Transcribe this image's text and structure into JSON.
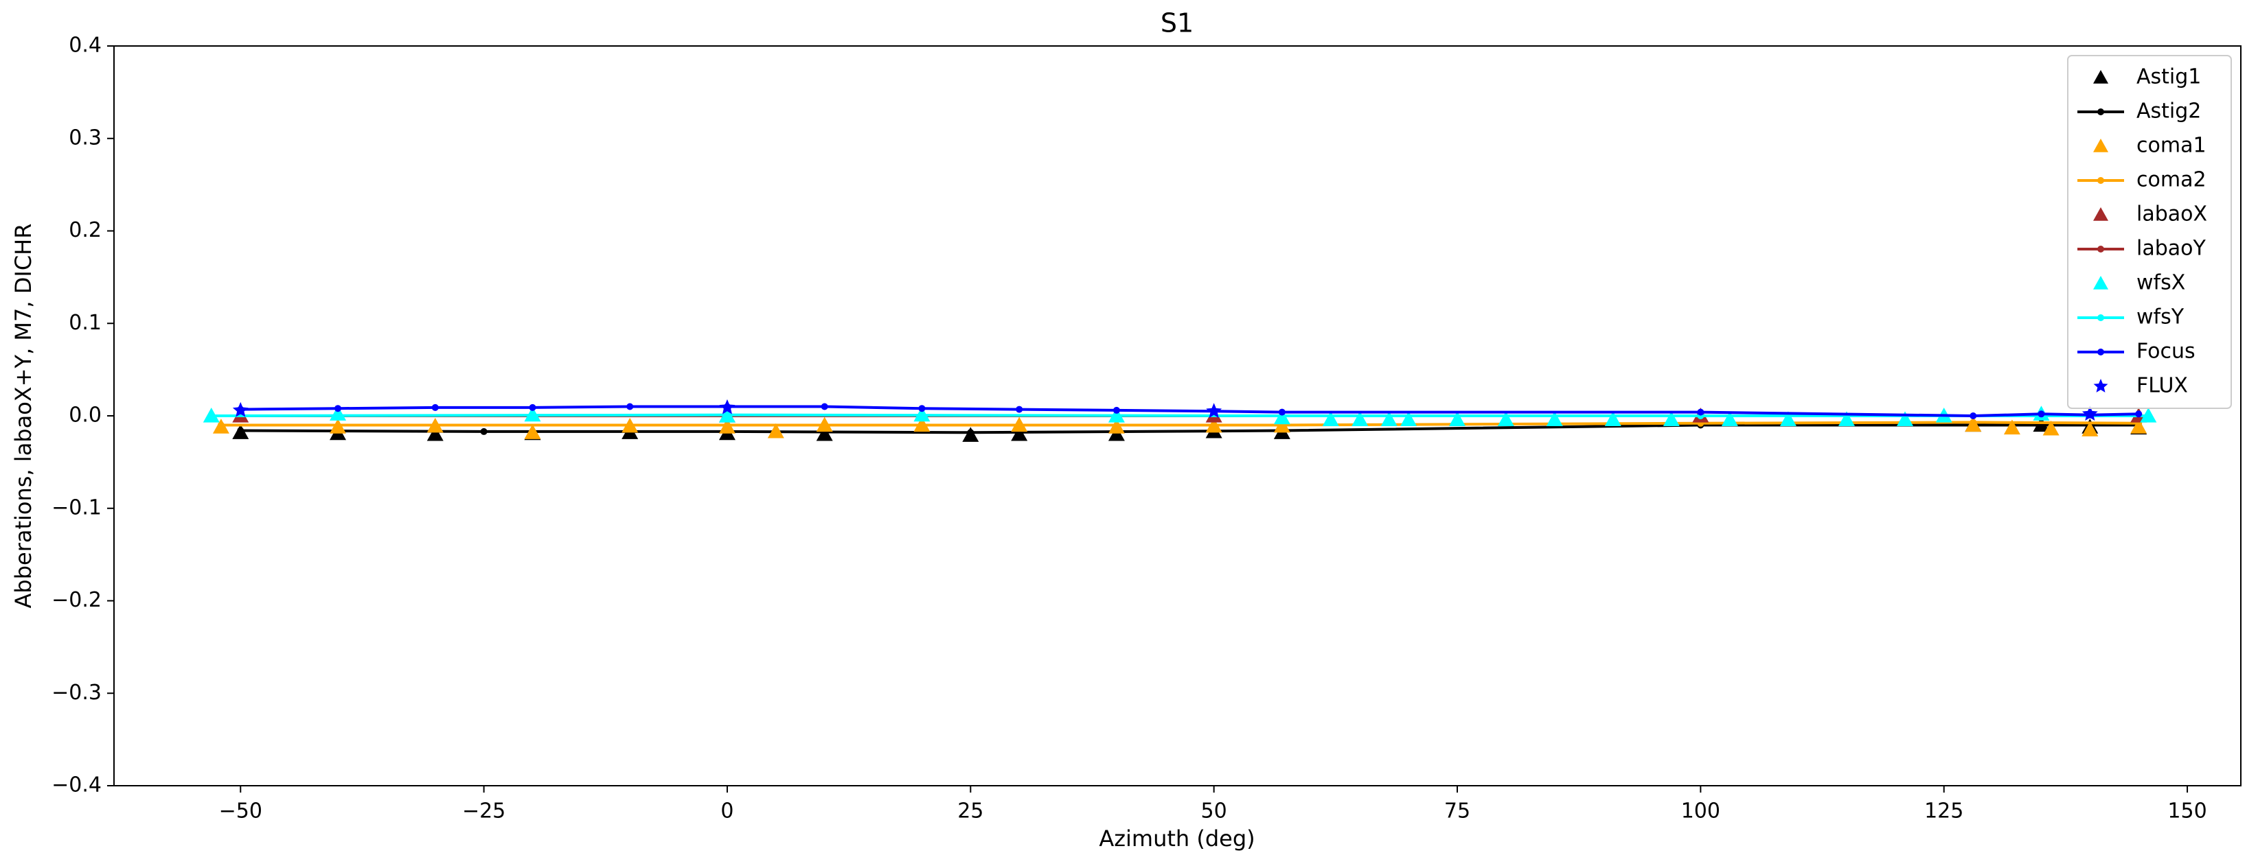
{
  "chart_data": {
    "type": "line",
    "title": "S1",
    "x_label": "Azimuth (deg)",
    "y_label": "Abberations, labaoX+Y, M7, DICHR",
    "xlim": [
      -63,
      155.5
    ],
    "ylim": [
      -0.4,
      0.4
    ],
    "xticks": [
      {
        "value": -50,
        "label": "−50"
      },
      {
        "value": -25,
        "label": "−25"
      },
      0,
      25,
      50,
      75,
      100,
      125,
      150
    ],
    "yticks": [
      {
        "value": -0.4,
        "label": "−0.4"
      },
      {
        "value": -0.3,
        "label": "−0.3"
      },
      {
        "value": -0.2,
        "label": "−0.2"
      },
      {
        "value": -0.1,
        "label": "−0.1"
      },
      {
        "value": 0,
        "label": "0.0"
      },
      0.1,
      0.2,
      0.3,
      0.4
    ],
    "legend": "upper right",
    "series": [
      {
        "name": "Astig1",
        "color": "#000000",
        "mode": "markers",
        "marker": "triangle",
        "x": [
          -50,
          -40,
          -30,
          -20,
          -10,
          0,
          10,
          20,
          25,
          30,
          40,
          50,
          57,
          128,
          135,
          140,
          145
        ],
        "values": [
          -0.018,
          -0.019,
          -0.02,
          -0.019,
          -0.018,
          -0.019,
          -0.02,
          -0.012,
          -0.021,
          -0.02,
          -0.02,
          -0.017,
          -0.018,
          -0.01,
          -0.01,
          -0.012,
          -0.013
        ]
      },
      {
        "name": "Astig2",
        "color": "#000000",
        "mode": "lines",
        "marker": "circle",
        "x": [
          -50,
          -25,
          0,
          25,
          57,
          100,
          128,
          145
        ],
        "values": [
          -0.016,
          -0.017,
          -0.017,
          -0.018,
          -0.016,
          -0.01,
          -0.01,
          -0.01
        ]
      },
      {
        "name": "coma1",
        "color": "#ffa500",
        "mode": "markers",
        "marker": "triangle",
        "x": [
          -52,
          -40,
          -30,
          -20,
          -10,
          0,
          5,
          10,
          20,
          30,
          40,
          50,
          57,
          128,
          132,
          136,
          140,
          145
        ],
        "values": [
          -0.012,
          -0.012,
          -0.011,
          -0.018,
          -0.011,
          -0.012,
          -0.017,
          -0.01,
          -0.01,
          -0.01,
          -0.012,
          -0.011,
          -0.011,
          -0.01,
          -0.013,
          -0.014,
          -0.015,
          -0.012
        ]
      },
      {
        "name": "coma2",
        "color": "#ffa500",
        "mode": "lines",
        "marker": "circle",
        "x": [
          -52,
          0,
          57,
          100,
          128,
          145
        ],
        "values": [
          -0.01,
          -0.01,
          -0.01,
          -0.008,
          -0.007,
          -0.008
        ]
      },
      {
        "name": "labaoX",
        "color": "#a52a2a",
        "mode": "markers",
        "marker": "triangle",
        "x": [
          -50,
          0,
          50,
          100,
          145
        ],
        "values": [
          0,
          0,
          0,
          0,
          0
        ]
      },
      {
        "name": "labaoY",
        "color": "#a52a2a",
        "mode": "lines",
        "marker": "circle",
        "x": [
          -50,
          0,
          50,
          100,
          145
        ],
        "values": [
          0,
          0,
          0,
          0,
          0
        ]
      },
      {
        "name": "wfsX",
        "color": "#00ffff",
        "mode": "markers",
        "marker": "triangle",
        "x": [
          -53,
          -40,
          -20,
          0,
          20,
          40,
          57,
          62,
          65,
          68,
          70,
          75,
          80,
          85,
          91,
          97,
          103,
          109,
          115,
          121,
          125,
          135,
          146
        ],
        "values": [
          0,
          0.002,
          0.001,
          0,
          0.001,
          0,
          -0.002,
          -0.004,
          -0.004,
          -0.004,
          -0.004,
          -0.004,
          -0.004,
          -0.004,
          -0.004,
          -0.004,
          -0.004,
          -0.004,
          -0.004,
          -0.004,
          0,
          0.002,
          0
        ]
      },
      {
        "name": "wfsY",
        "color": "#00ffff",
        "mode": "lines",
        "marker": "circle",
        "x": [
          -53,
          0,
          57,
          100,
          146
        ],
        "values": [
          0,
          0.001,
          0,
          0,
          0
        ]
      },
      {
        "name": "Focus",
        "color": "#0000ff",
        "mode": "lines",
        "marker": "circle",
        "x": [
          -50,
          -40,
          -30,
          -20,
          -10,
          0,
          10,
          20,
          30,
          40,
          50,
          57,
          100,
          128,
          135,
          140,
          145
        ],
        "values": [
          0.007,
          0.008,
          0.009,
          0.009,
          0.01,
          0.01,
          0.01,
          0.008,
          0.007,
          0.006,
          0.005,
          0.004,
          0.004,
          0,
          0.002,
          0.001,
          0.002
        ]
      },
      {
        "name": "FLUX",
        "color": "#0000ff",
        "mode": "markers",
        "marker": "star",
        "x": [
          -50,
          0,
          50,
          140
        ],
        "values": [
          0.006,
          0.009,
          0.005,
          0.002
        ]
      }
    ]
  }
}
